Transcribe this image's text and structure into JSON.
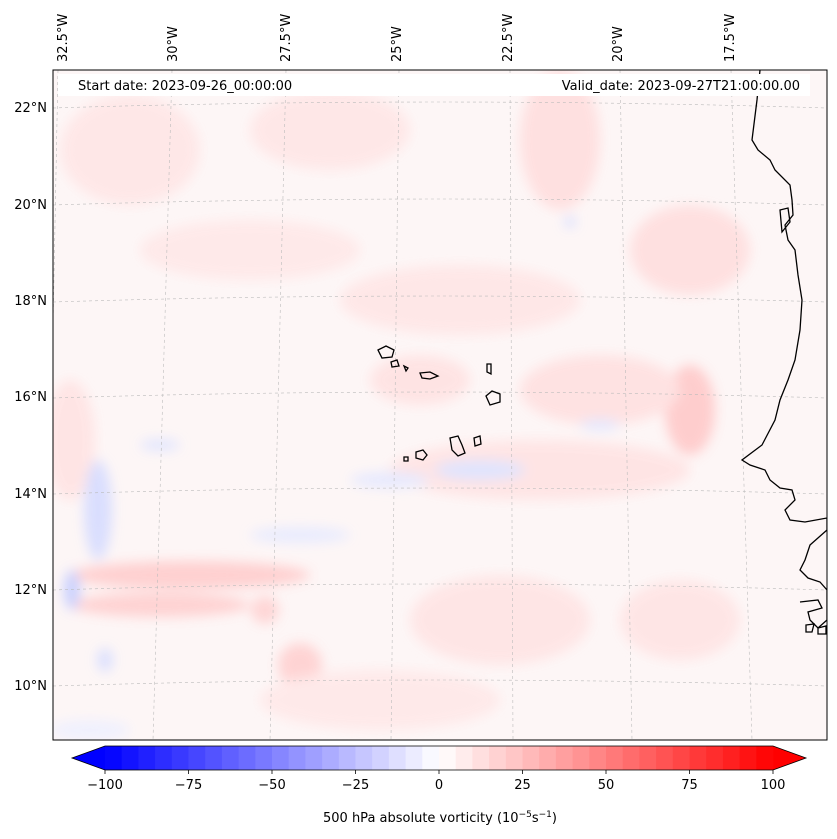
{
  "header": {
    "start_date": "Start date: 2023-09-26_00:00:00",
    "valid_date": "Valid_date: 2023-09-27T21:00:00.00"
  },
  "map": {
    "lon_labels": [
      "32.5°W",
      "30°W",
      "27.5°W",
      "25°W",
      "22.5°W",
      "20°W",
      "17.5°W"
    ],
    "lat_labels": [
      "22°N",
      "20°N",
      "18°N",
      "16°N",
      "14°N",
      "12°N",
      "10°N"
    ],
    "field": "500 hPa absolute vorticity"
  },
  "colorbar": {
    "ticks": [
      "−100",
      "−75",
      "−50",
      "−25",
      "0",
      "25",
      "50",
      "75",
      "100"
    ],
    "label_main": "500 hPa absolute vorticity (10",
    "label_exp1": "−5",
    "label_mid": "s",
    "label_exp2": "−1",
    "label_end": ")",
    "vmin": -100,
    "vmax": 100,
    "levels": 40,
    "colors": {
      "neg": "#0000ff",
      "pos": "#ff0000",
      "zero": "#ffffff"
    }
  },
  "colors": {
    "coast": "#000000",
    "grid": "#bbbbbb",
    "tint_pos": "#ffe3e3",
    "tint_neg": "#e2e6ff"
  }
}
